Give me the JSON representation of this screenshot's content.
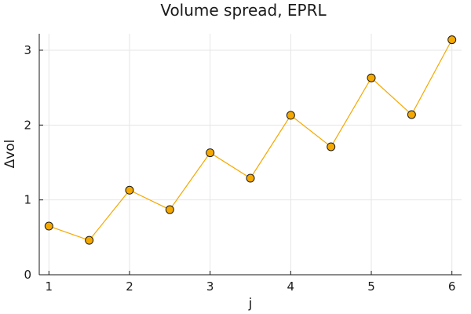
{
  "chart_data": {
    "type": "line",
    "title": "Volume spread, EPRL",
    "xlabel": "j",
    "ylabel": "Δvol",
    "xlim": [
      0.88,
      6.12
    ],
    "ylim": [
      0,
      3.22
    ],
    "xticks": [
      1,
      2,
      3,
      4,
      5,
      6
    ],
    "yticks": [
      0,
      1,
      2,
      3
    ],
    "grid": true,
    "legend": "none",
    "series": [
      {
        "x": [
          1,
          1.5,
          2,
          2.5,
          3,
          3.5,
          4,
          4.5,
          5,
          5.5,
          6
        ],
        "y": [
          0.65,
          0.46,
          1.13,
          0.87,
          1.63,
          1.29,
          2.13,
          1.71,
          2.63,
          2.14,
          3.14
        ],
        "line_color": "#f5a800",
        "marker_fill": "#f5a800",
        "marker_edge": "#1a1a1a",
        "marker": "circle"
      }
    ]
  }
}
